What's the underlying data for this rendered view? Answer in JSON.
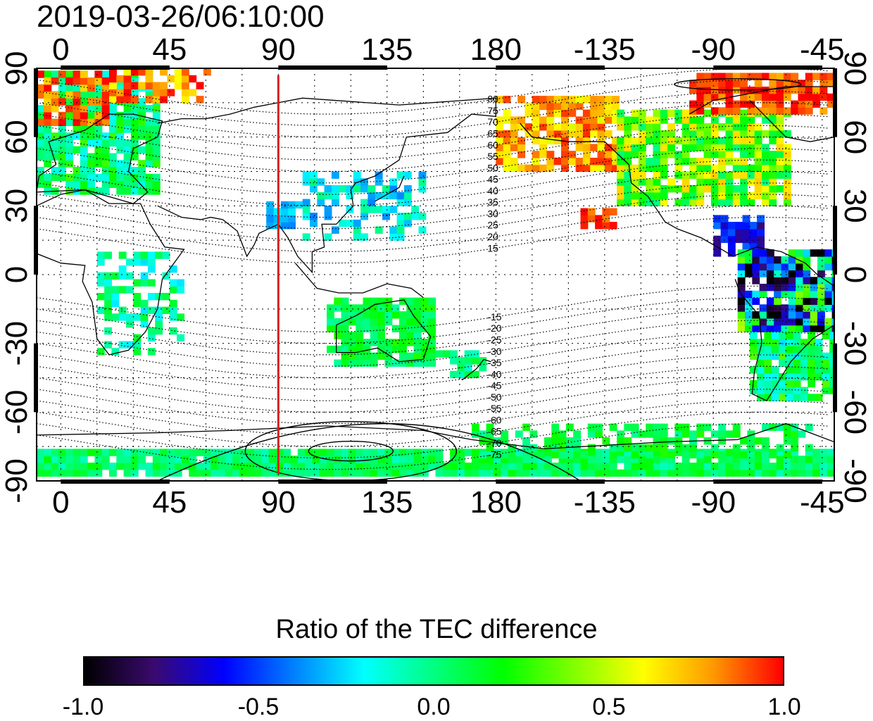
{
  "title": "2019-03-26/06:10:00",
  "map": {
    "x_tick_labels": [
      "0",
      "45",
      "90",
      "135",
      "180",
      "-135",
      "-90",
      "-45"
    ],
    "y_tick_labels_left": [
      "90",
      "60",
      "30",
      "0",
      "-30",
      "-60",
      "-90"
    ],
    "y_tick_labels_right": [
      "90",
      "60",
      "30",
      "0",
      "-30",
      "-60",
      "-90"
    ],
    "reference_longitude": 90,
    "reference_line_color": "#d62020",
    "mlat_labels_north": [
      "80",
      "75",
      "70",
      "65",
      "60",
      "55",
      "50",
      "45",
      "40",
      "35",
      "30",
      "25",
      "20",
      "15"
    ],
    "mlat_labels_south": [
      "-15",
      "-20",
      "-25",
      "-30",
      "-35",
      "-40",
      "-45",
      "-50",
      "-55",
      "-60",
      "-65",
      "-70",
      "-75"
    ]
  },
  "colorbar": {
    "title": "Ratio of the TEC difference",
    "min": -1.0,
    "max": 1.0,
    "tick_labels": [
      "-1.0",
      "-0.5",
      "0.0",
      "0.5",
      "1.0"
    ],
    "colors": [
      "#000000",
      "#3a0a6e",
      "#0000ff",
      "#0080ff",
      "#00ffff",
      "#00ff80",
      "#00ff00",
      "#80ff00",
      "#ffff00",
      "#ff9900",
      "#ff0000"
    ]
  }
}
